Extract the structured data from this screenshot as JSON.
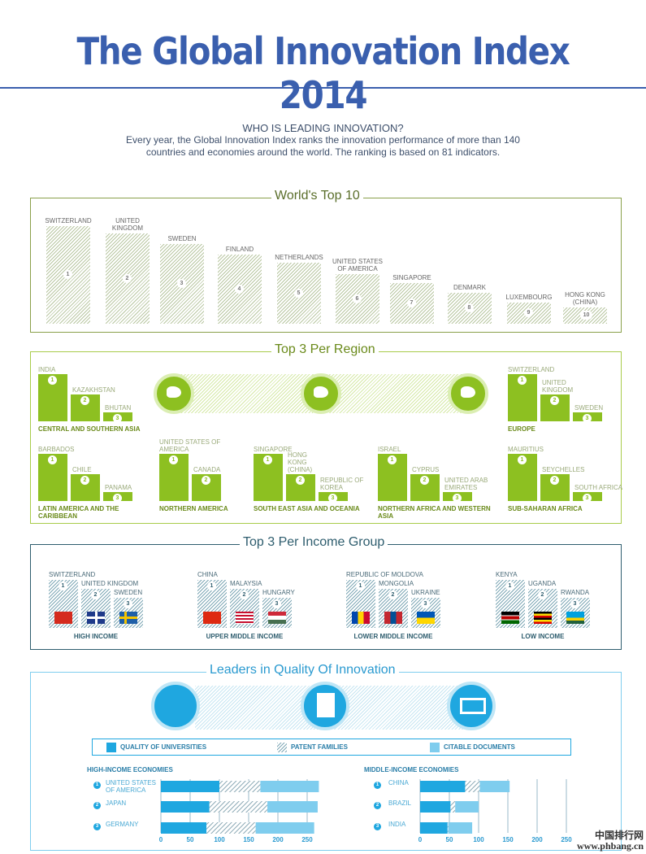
{
  "header": {
    "title": "The Global Innovation Index 2014",
    "question": "WHO IS LEADING INNOVATION?",
    "intro": "Every year, the Global Innovation Index ranks the innovation performance of more than 140 countries and economies around the world. The ranking is based on 81 indicators."
  },
  "top10": {
    "title": "World's Top 10",
    "items": [
      {
        "rank": "1",
        "name": "SWITZERLAND"
      },
      {
        "rank": "2",
        "name": "UNITED KINGDOM"
      },
      {
        "rank": "3",
        "name": "SWEDEN"
      },
      {
        "rank": "4",
        "name": "FINLAND"
      },
      {
        "rank": "5",
        "name": "NETHERLANDS"
      },
      {
        "rank": "6",
        "name": "UNITED STATES OF AMERICA"
      },
      {
        "rank": "7",
        "name": "SINGAPORE"
      },
      {
        "rank": "8",
        "name": "DENMARK"
      },
      {
        "rank": "9",
        "name": "LUXEMBOURG"
      },
      {
        "rank": "10",
        "name": "HONG KONG (CHINA)"
      }
    ]
  },
  "regions": {
    "title": "Top 3 Per Region",
    "groups": [
      {
        "name": "CENTRAL AND SOUTHERN ASIA",
        "countries": [
          "INDIA",
          "KAZAKHSTAN",
          "BHUTAN"
        ]
      },
      {
        "name": "EUROPE",
        "countries": [
          "SWITZERLAND",
          "UNITED KINGDOM",
          "SWEDEN"
        ]
      },
      {
        "name": "LATIN AMERICA AND THE CARIBBEAN",
        "countries": [
          "BARBADOS",
          "CHILE",
          "PANAMA"
        ]
      },
      {
        "name": "NORTHERN AMERICA",
        "countries": [
          "UNITED STATES OF AMERICA",
          "CANADA"
        ]
      },
      {
        "name": "SOUTH EAST ASIA AND OCEANIA",
        "countries": [
          "SINGAPORE",
          "HONG KONG (CHINA)",
          "REPUBLIC OF KOREA"
        ]
      },
      {
        "name": "NORTHERN AFRICA AND WESTERN ASIA",
        "countries": [
          "ISRAEL",
          "CYPRUS",
          "UNITED ARAB EMIRATES"
        ]
      },
      {
        "name": "SUB-SAHARAN AFRICA",
        "countries": [
          "MAURITIUS",
          "SEYCHELLES",
          "SOUTH AFRICA"
        ]
      }
    ]
  },
  "income": {
    "title": "Top 3 Per Income Group",
    "groups": [
      {
        "name": "HIGH INCOME",
        "countries": [
          "SWITZERLAND",
          "UNITED KINGDOM",
          "SWEDEN"
        ],
        "flags": [
          "switzerland-flag",
          "uk-flag",
          "sweden-flag"
        ]
      },
      {
        "name": "UPPER MIDDLE INCOME",
        "countries": [
          "CHINA",
          "MALAYSIA",
          "HUNGARY"
        ],
        "flags": [
          "china-flag",
          "malaysia-flag",
          "hungary-flag"
        ]
      },
      {
        "name": "LOWER MIDDLE INCOME",
        "countries": [
          "REPUBLIC OF MOLDOVA",
          "MONGOLIA",
          "UKRAINE"
        ],
        "flags": [
          "moldova-flag",
          "mongolia-flag",
          "ukraine-flag"
        ]
      },
      {
        "name": "LOW INCOME",
        "countries": [
          "KENYA",
          "UGANDA",
          "RWANDA"
        ],
        "flags": [
          "kenya-flag",
          "uganda-flag",
          "rwanda-flag"
        ]
      }
    ]
  },
  "leaders": {
    "title": "Leaders in Quality Of Innovation",
    "icons": [
      "universities-icon",
      "patent-icon",
      "citable-documents-icon"
    ]
  },
  "colors": {
    "universities": "#1fa7e0",
    "patents": "hatched",
    "citable": "#7fcdee",
    "green": "#8dc021",
    "blue": "#3a5fae"
  },
  "chart_data": [
    {
      "type": "bar",
      "stacked": true,
      "orientation": "horizontal",
      "title": "HIGH-INCOME ECONOMIES",
      "categories": [
        "UNITED STATES OF AMERICA",
        "JAPAN",
        "GERMANY"
      ],
      "ranks": [
        "1",
        "2",
        "3"
      ],
      "series": [
        {
          "name": "QUALITY OF UNIVERSITIES",
          "values": [
            100,
            83,
            78
          ]
        },
        {
          "name": "PATENT FAMILIES",
          "values": [
            70,
            99,
            84
          ]
        },
        {
          "name": "CITABLE DOCUMENTS",
          "values": [
            100,
            86,
            100
          ]
        }
      ],
      "xticks": [
        "0",
        "50",
        "100",
        "150",
        "200",
        "250"
      ],
      "xlim": [
        0,
        270
      ]
    },
    {
      "type": "bar",
      "stacked": true,
      "orientation": "horizontal",
      "title": "MIDDLE-INCOME ECONOMIES",
      "categories": [
        "CHINA",
        "BRAZIL",
        "INDIA"
      ],
      "ranks": [
        "1",
        "2",
        "3"
      ],
      "series": [
        {
          "name": "QUALITY OF UNIVERSITIES",
          "values": [
            77,
            52,
            47
          ]
        },
        {
          "name": "PATENT FAMILIES",
          "values": [
            25,
            8,
            1
          ]
        },
        {
          "name": "CITABLE DOCUMENTS",
          "values": [
            51,
            40,
            41
          ]
        }
      ],
      "xticks": [
        "0",
        "50",
        "100",
        "150",
        "200",
        "250"
      ],
      "xlim": [
        0,
        270
      ]
    }
  ],
  "watermark": {
    "line1": "中国排行网",
    "line2": "www.phbang.cn"
  }
}
